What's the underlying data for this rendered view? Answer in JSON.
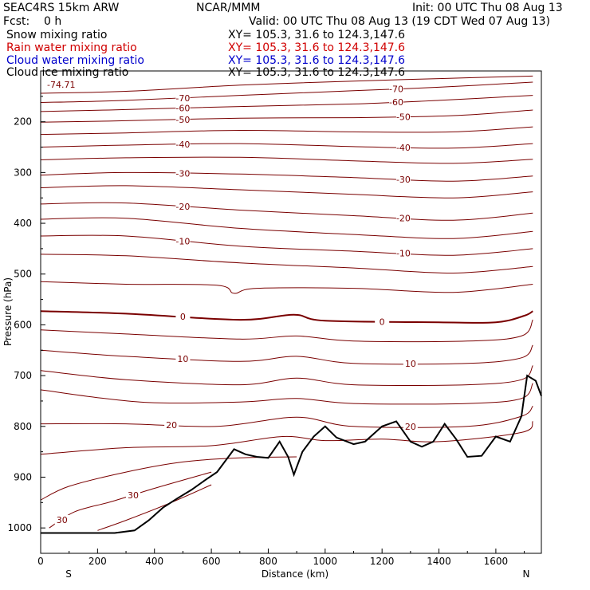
{
  "header": {
    "model": "SEAC4RS 15km ARW",
    "org": "NCAR/MMM",
    "init": "Init: 00 UTC Thu 08 Aug 13",
    "fcst": "Fcst:    0 h",
    "valid": "Valid: 00 UTC Thu 08 Aug 13 (19 CDT Wed 07 Aug 13)"
  },
  "fields": [
    {
      "name": "Snow mixing ratio",
      "xy": "XY= 105.3, 31.6 to 124.3,147.6",
      "color": "#000000"
    },
    {
      "name": "Rain water mixing ratio",
      "xy": "XY= 105.3, 31.6 to 124.3,147.6",
      "color": "#d00000"
    },
    {
      "name": "Cloud water mixing ratio",
      "xy": "XY= 105.3, 31.6 to 124.3,147.6",
      "color": "#0000cc"
    },
    {
      "name": "Cloud ice mixing ratio",
      "xy": "XY= 105.3, 31.6 to 124.3,147.6",
      "color": "#000000"
    }
  ],
  "chart_data": {
    "type": "contour",
    "xlabel": "Distance (km)",
    "ylabel": "Pressure (hPa)",
    "xlim": [
      0,
      1760
    ],
    "ylim": [
      1050,
      100
    ],
    "xticks": [
      0,
      200,
      400,
      600,
      800,
      1000,
      1200,
      1400,
      1600
    ],
    "yticks": [
      200,
      300,
      400,
      500,
      600,
      700,
      800,
      900,
      1000
    ],
    "x_endpoints": {
      "left": "S",
      "right": "N"
    },
    "min_label": "-74.71",
    "contour_color": "#7a0000",
    "terrain_color": "#000000",
    "contours": [
      {
        "level": "",
        "points": [
          [
            0,
            144
          ],
          [
            300,
            140
          ],
          [
            700,
            128
          ],
          [
            1100,
            120
          ],
          [
            1400,
            115
          ],
          [
            1730,
            110
          ]
        ]
      },
      {
        "level": "-70",
        "points": [
          [
            0,
            162
          ],
          [
            300,
            158
          ],
          [
            700,
            148
          ],
          [
            1100,
            139
          ],
          [
            1400,
            132
          ],
          [
            1730,
            122
          ]
        ]
      },
      {
        "level": "-60",
        "points": [
          [
            0,
            180
          ],
          [
            300,
            176
          ],
          [
            700,
            170
          ],
          [
            1100,
            165
          ],
          [
            1400,
            158
          ],
          [
            1730,
            148
          ]
        ]
      },
      {
        "level": "-50",
        "points": [
          [
            0,
            201
          ],
          [
            300,
            198
          ],
          [
            700,
            193
          ],
          [
            1100,
            192
          ],
          [
            1450,
            188
          ],
          [
            1730,
            177
          ]
        ]
      },
      {
        "level": "",
        "points": [
          [
            0,
            225
          ],
          [
            300,
            222
          ],
          [
            700,
            217
          ],
          [
            1100,
            220
          ],
          [
            1450,
            220
          ],
          [
            1730,
            210
          ]
        ]
      },
      {
        "level": "-40",
        "points": [
          [
            0,
            250
          ],
          [
            300,
            246
          ],
          [
            700,
            243
          ],
          [
            1100,
            249
          ],
          [
            1450,
            252
          ],
          [
            1730,
            243
          ]
        ]
      },
      {
        "level": "",
        "points": [
          [
            0,
            275
          ],
          [
            300,
            271
          ],
          [
            700,
            270
          ],
          [
            1100,
            277
          ],
          [
            1450,
            282
          ],
          [
            1730,
            274
          ]
        ]
      },
      {
        "level": "-30",
        "points": [
          [
            0,
            305
          ],
          [
            300,
            300
          ],
          [
            700,
            303
          ],
          [
            1100,
            310
          ],
          [
            1450,
            317
          ],
          [
            1730,
            307
          ]
        ]
      },
      {
        "level": "",
        "points": [
          [
            0,
            330
          ],
          [
            300,
            326
          ],
          [
            700,
            334
          ],
          [
            1100,
            343
          ],
          [
            1450,
            350
          ],
          [
            1730,
            338
          ]
        ]
      },
      {
        "level": "-20",
        "points": [
          [
            0,
            362
          ],
          [
            300,
            360
          ],
          [
            700,
            374
          ],
          [
            1100,
            385
          ],
          [
            1450,
            394
          ],
          [
            1730,
            380
          ]
        ]
      },
      {
        "level": "",
        "points": [
          [
            0,
            392
          ],
          [
            300,
            390
          ],
          [
            700,
            410
          ],
          [
            1100,
            422
          ],
          [
            1450,
            430
          ],
          [
            1730,
            416
          ]
        ]
      },
      {
        "level": "-10",
        "points": [
          [
            0,
            425
          ],
          [
            300,
            425
          ],
          [
            700,
            445
          ],
          [
            1100,
            455
          ],
          [
            1450,
            463
          ],
          [
            1730,
            450
          ]
        ]
      },
      {
        "level": "",
        "points": [
          [
            0,
            461
          ],
          [
            300,
            464
          ],
          [
            700,
            478
          ],
          [
            1100,
            488
          ],
          [
            1450,
            498
          ],
          [
            1730,
            485
          ]
        ]
      },
      {
        "level": "",
        "points": [
          [
            0,
            515
          ],
          [
            300,
            520
          ],
          [
            620,
            522
          ],
          [
            680,
            538
          ],
          [
            760,
            528
          ],
          [
            1100,
            528
          ],
          [
            1450,
            536
          ],
          [
            1730,
            520
          ]
        ]
      },
      {
        "level": "0",
        "points": [
          [
            0,
            573
          ],
          [
            300,
            578
          ],
          [
            700,
            590
          ],
          [
            890,
            580
          ],
          [
            1000,
            592
          ],
          [
            1400,
            595
          ],
          [
            1600,
            595
          ],
          [
            1700,
            582
          ],
          [
            1730,
            573
          ]
        ]
      },
      {
        "level": "",
        "points": [
          [
            0,
            610
          ],
          [
            300,
            618
          ],
          [
            700,
            628
          ],
          [
            900,
            622
          ],
          [
            1100,
            632
          ],
          [
            1500,
            632
          ],
          [
            1690,
            622
          ],
          [
            1730,
            590
          ]
        ]
      },
      {
        "level": "10",
        "points": [
          [
            0,
            650
          ],
          [
            300,
            662
          ],
          [
            700,
            672
          ],
          [
            900,
            662
          ],
          [
            1100,
            676
          ],
          [
            1500,
            676
          ],
          [
            1690,
            665
          ],
          [
            1730,
            640
          ]
        ]
      },
      {
        "level": "",
        "points": [
          [
            0,
            690
          ],
          [
            300,
            708
          ],
          [
            700,
            718
          ],
          [
            900,
            705
          ],
          [
            1100,
            718
          ],
          [
            1500,
            718
          ],
          [
            1690,
            708
          ],
          [
            1730,
            680
          ]
        ]
      },
      {
        "level": "",
        "points": [
          [
            0,
            728
          ],
          [
            350,
            752
          ],
          [
            700,
            752
          ],
          [
            900,
            745
          ],
          [
            1100,
            755
          ],
          [
            1500,
            755
          ],
          [
            1690,
            745
          ],
          [
            1730,
            715
          ]
        ]
      },
      {
        "level": "20",
        "points": [
          [
            0,
            795
          ],
          [
            300,
            795
          ],
          [
            620,
            800
          ],
          [
            900,
            782
          ],
          [
            1100,
            800
          ],
          [
            1500,
            800
          ],
          [
            1690,
            780
          ],
          [
            1730,
            760
          ]
        ]
      },
      {
        "level": "",
        "points": [
          [
            0,
            855
          ],
          [
            300,
            842
          ],
          [
            600,
            838
          ],
          [
            850,
            820
          ],
          [
            1000,
            828
          ],
          [
            1200,
            825
          ],
          [
            1400,
            830
          ],
          [
            1690,
            812
          ],
          [
            1730,
            790
          ]
        ]
      },
      {
        "level": "",
        "points": [
          [
            0,
            945
          ],
          [
            100,
            918
          ],
          [
            300,
            890
          ],
          [
            500,
            870
          ],
          [
            700,
            862
          ],
          [
            900,
            860
          ]
        ]
      },
      {
        "level": "30",
        "points": [
          [
            30,
            1000
          ],
          [
            120,
            968
          ],
          [
            250,
            948
          ],
          [
            400,
            922
          ],
          [
            600,
            890
          ]
        ]
      },
      {
        "level": "",
        "points": [
          [
            200,
            1005
          ],
          [
            300,
            985
          ],
          [
            450,
            952
          ],
          [
            600,
            915
          ]
        ]
      }
    ],
    "terrain": [
      [
        0,
        1010
      ],
      [
        260,
        1010
      ],
      [
        330,
        1005
      ],
      [
        380,
        985
      ],
      [
        430,
        960
      ],
      [
        480,
        942
      ],
      [
        530,
        925
      ],
      [
        580,
        905
      ],
      [
        620,
        890
      ],
      [
        680,
        845
      ],
      [
        720,
        855
      ],
      [
        760,
        860
      ],
      [
        800,
        862
      ],
      [
        840,
        830
      ],
      [
        870,
        860
      ],
      [
        890,
        895
      ],
      [
        920,
        850
      ],
      [
        960,
        820
      ],
      [
        1000,
        800
      ],
      [
        1040,
        822
      ],
      [
        1100,
        835
      ],
      [
        1140,
        830
      ],
      [
        1200,
        800
      ],
      [
        1250,
        790
      ],
      [
        1300,
        830
      ],
      [
        1340,
        840
      ],
      [
        1380,
        830
      ],
      [
        1420,
        795
      ],
      [
        1460,
        825
      ],
      [
        1500,
        860
      ],
      [
        1550,
        858
      ],
      [
        1600,
        820
      ],
      [
        1650,
        830
      ],
      [
        1690,
        780
      ],
      [
        1710,
        700
      ],
      [
        1740,
        710
      ],
      [
        1760,
        740
      ]
    ]
  }
}
